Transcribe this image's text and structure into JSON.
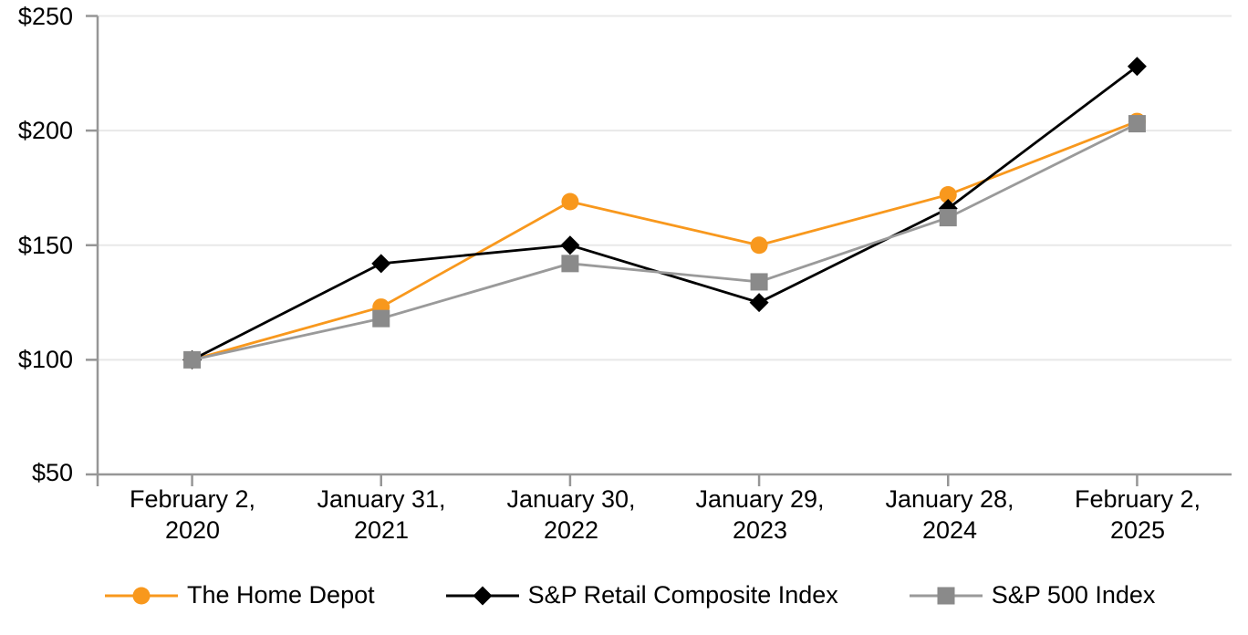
{
  "chart_data": {
    "type": "line",
    "title": "",
    "xlabel": "",
    "ylabel": "",
    "categories": [
      "February 2,\n2020",
      "January 31,\n2021",
      "January 30,\n2022",
      "January 29,\n2023",
      "January 28,\n2024",
      "February 2,\n2025"
    ],
    "series": [
      {
        "id": "home-depot",
        "name": "The Home Depot",
        "marker": "circle",
        "line_color": "#F8981D",
        "marker_color": "#F8981D",
        "values": [
          100,
          123,
          169,
          150,
          172,
          204
        ]
      },
      {
        "id": "sp-retail-composite",
        "name": "S&P Retail Composite Index",
        "marker": "diamond",
        "line_color": "#000000",
        "marker_color": "#000000",
        "values": [
          100,
          142,
          150,
          125,
          166,
          228
        ]
      },
      {
        "id": "sp-500",
        "name": "S&P 500 Index",
        "marker": "square",
        "line_color": "#9A9A9A",
        "marker_color": "#8A8A8A",
        "values": [
          100,
          118,
          142,
          134,
          162,
          203
        ]
      }
    ],
    "y_axis": {
      "min": 50,
      "max": 250,
      "step": 50,
      "tick_labels": [
        "$250",
        "$200",
        "$150",
        "$100",
        "$50"
      ]
    },
    "ylim": [
      50,
      250
    ],
    "grid": true,
    "legend_position": "bottom"
  },
  "colors": {
    "background": "#FFFFFF",
    "gridline": "#E8E8E8",
    "axis": "#969696",
    "text": "#000000"
  }
}
